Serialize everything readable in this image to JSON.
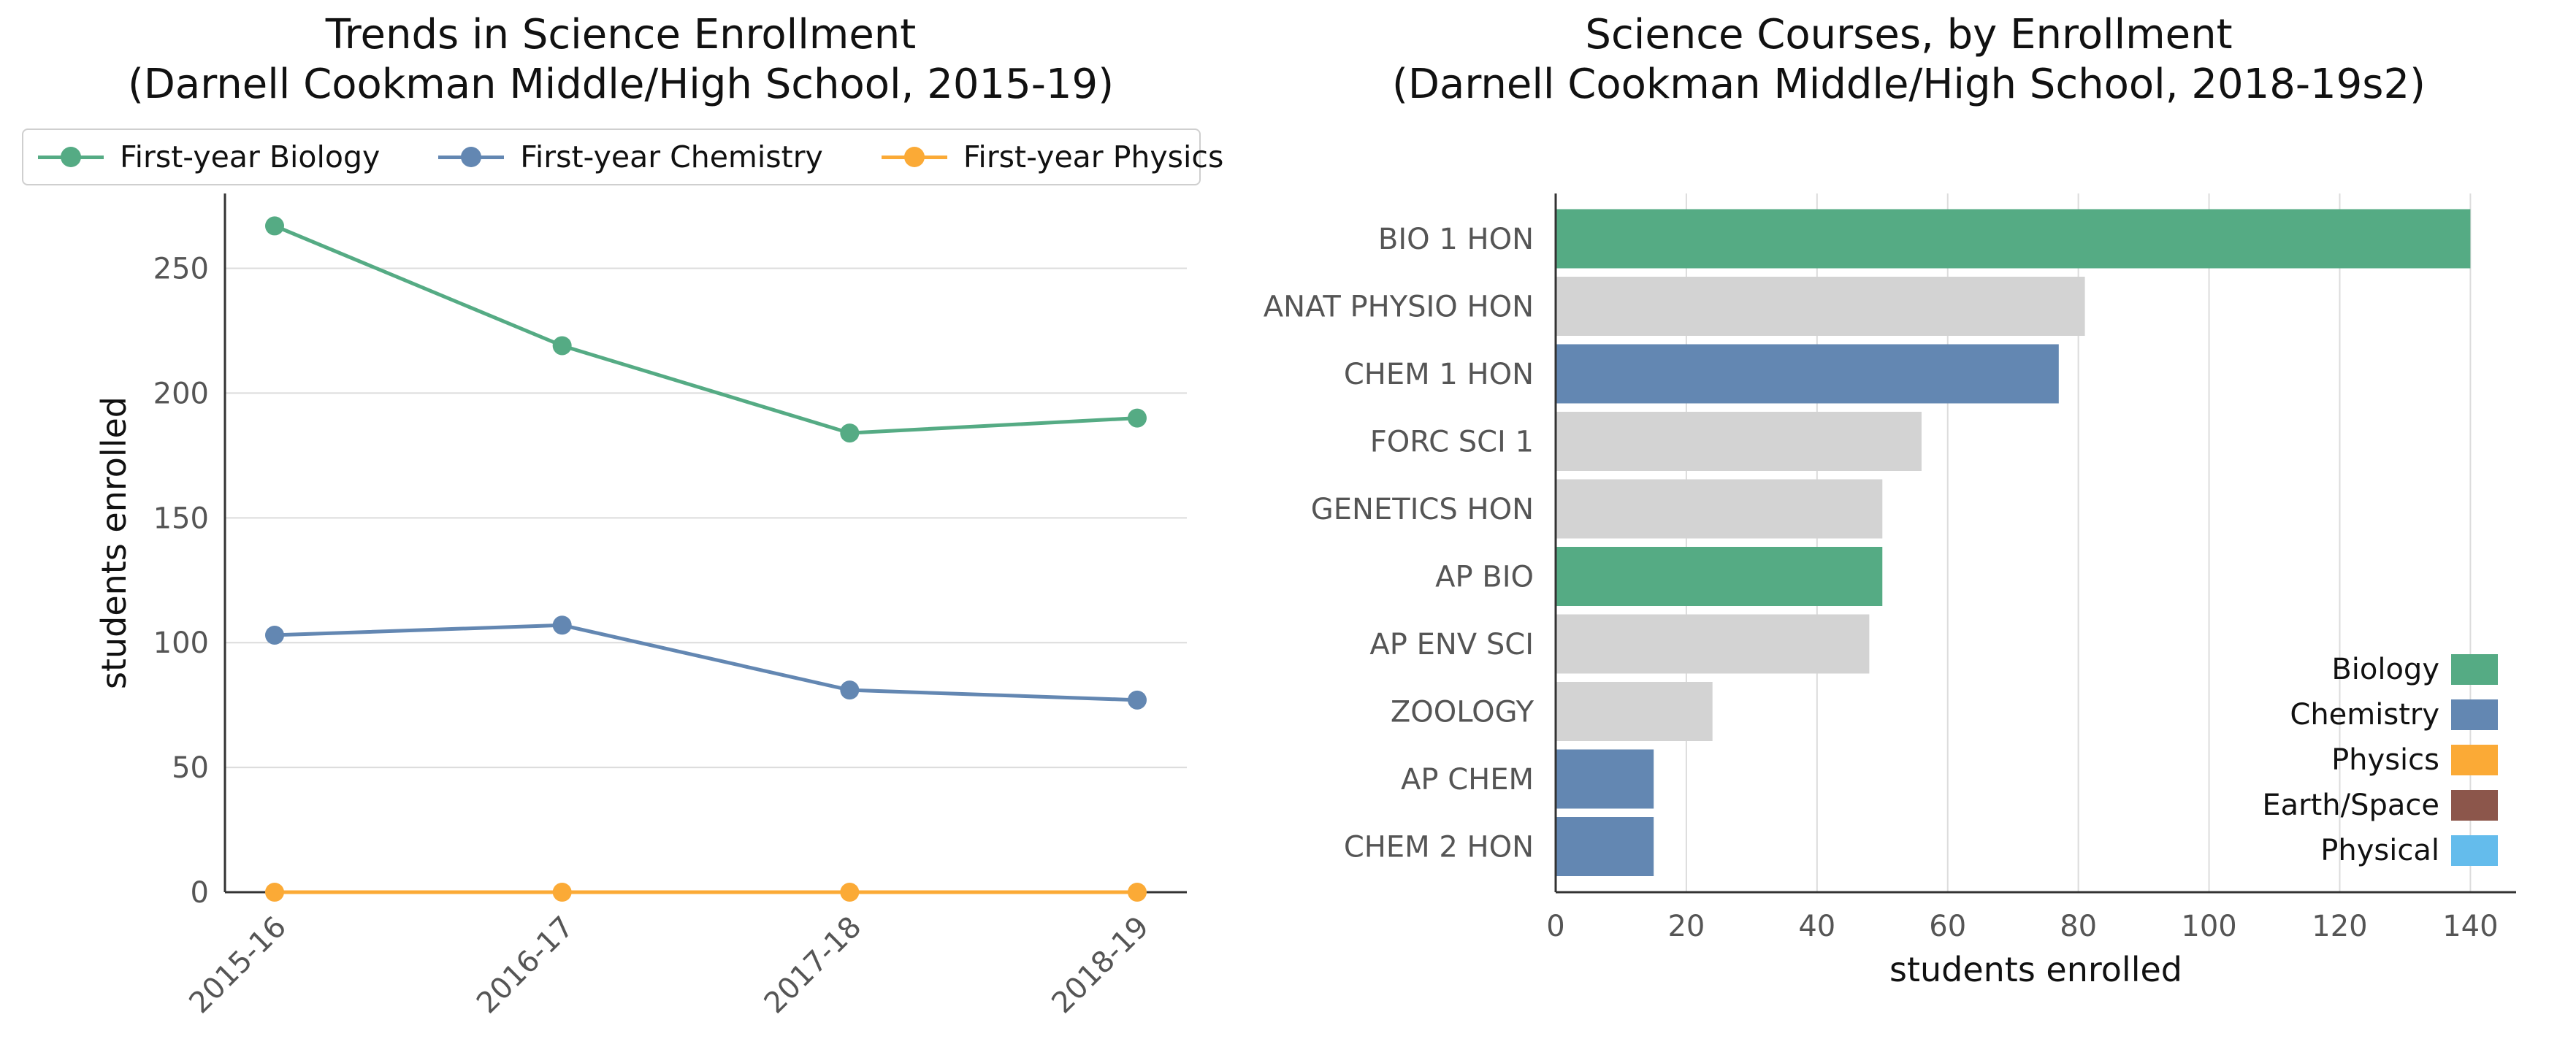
{
  "colors": {
    "biology": "#55ab84",
    "chemistry": "#6387b2",
    "physics": "#fbaa36",
    "earth_space": "#8c564b",
    "physical": "#64bcec",
    "other": "#d3d3d3"
  },
  "chart_data": [
    {
      "type": "line",
      "title_lines": [
        "Trends in Science Enrollment",
        "(Darnell Cookman Middle/High School, 2015-19)"
      ],
      "xlabel": "",
      "ylabel": "students enrolled",
      "x": [
        "2015-16",
        "2016-17",
        "2017-18",
        "2018-19"
      ],
      "ylim": [
        0,
        280
      ],
      "yticks": [
        0,
        50,
        100,
        150,
        200,
        250
      ],
      "grid": "horizontal",
      "legend_position": "top",
      "series": [
        {
          "name": "First-year Biology",
          "color_key": "biology",
          "values": [
            267,
            219,
            184,
            190
          ]
        },
        {
          "name": "First-year Chemistry",
          "color_key": "chemistry",
          "values": [
            103,
            107,
            81,
            77
          ]
        },
        {
          "name": "First-year Physics",
          "color_key": "physics",
          "values": [
            0,
            0,
            0,
            0
          ]
        }
      ]
    },
    {
      "type": "bar",
      "orientation": "horizontal",
      "title_lines": [
        "Science Courses, by Enrollment",
        "(Darnell Cookman Middle/High School, 2018-19s2)"
      ],
      "xlabel": "students enrolled",
      "ylabel": "",
      "xlim": [
        0,
        147
      ],
      "xticks": [
        0,
        20,
        40,
        60,
        80,
        100,
        120,
        140
      ],
      "grid": "vertical",
      "legend_position": "bottom-right",
      "categories": [
        "BIO 1 HON",
        "ANAT PHYSIO HON",
        "CHEM 1 HON",
        "FORC SCI 1",
        "GENETICS HON",
        "AP BIO",
        "AP ENV SCI",
        "ZOOLOGY",
        "AP CHEM",
        "CHEM 2 HON"
      ],
      "values": [
        140,
        81,
        77,
        56,
        50,
        50,
        48,
        24,
        15,
        15
      ],
      "bar_color_keys": [
        "biology",
        "other",
        "chemistry",
        "other",
        "other",
        "biology",
        "other",
        "other",
        "chemistry",
        "chemistry"
      ],
      "legend": [
        {
          "label": "Biology",
          "color_key": "biology"
        },
        {
          "label": "Chemistry",
          "color_key": "chemistry"
        },
        {
          "label": "Physics",
          "color_key": "physics"
        },
        {
          "label": "Earth/Space",
          "color_key": "earth_space"
        },
        {
          "label": "Physical",
          "color_key": "physical"
        }
      ]
    }
  ]
}
